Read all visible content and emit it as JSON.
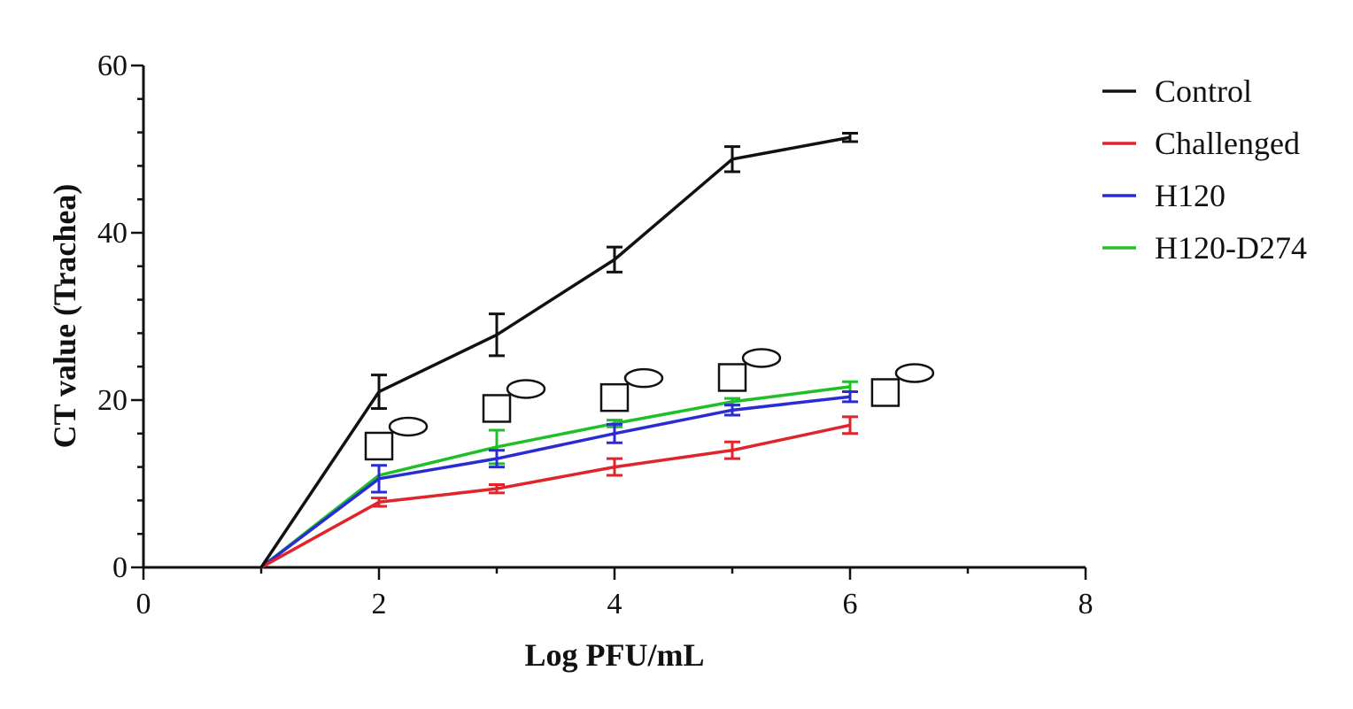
{
  "chart_data": {
    "type": "line",
    "xlabel": "Log PFU/mL",
    "ylabel": "CT value (Trachea)",
    "xlim": [
      0,
      8
    ],
    "ylim": [
      0,
      60
    ],
    "x_ticks": [
      "0",
      "2",
      "4",
      "6",
      "8"
    ],
    "y_ticks": [
      "0",
      "20",
      "40",
      "60"
    ],
    "grid": false,
    "legend_position": "top-right",
    "series": [
      {
        "name": "Control",
        "color": "#111111",
        "x": [
          1,
          2,
          3,
          4,
          5,
          6
        ],
        "y": [
          0,
          21,
          27.8,
          36.8,
          48.8,
          51.4
        ],
        "err": [
          null,
          2,
          2.5,
          1.5,
          1.5,
          0.5
        ]
      },
      {
        "name": "Challenged",
        "color": "#e0252a",
        "x": [
          1,
          2,
          3,
          4,
          5,
          6
        ],
        "y": [
          0,
          7.8,
          9.4,
          12,
          14,
          17
        ],
        "err": [
          null,
          0.5,
          0.5,
          1,
          1,
          1
        ]
      },
      {
        "name": "H120",
        "color": "#2b2bd6",
        "x": [
          1,
          2,
          3,
          4,
          5,
          6
        ],
        "y": [
          0,
          10.6,
          13,
          16,
          18.8,
          20.4
        ],
        "err": [
          null,
          1.6,
          1,
          1.1,
          0.6,
          0.6
        ]
      },
      {
        "name": "H120-D274",
        "color": "#1fbf2a",
        "x": [
          1,
          2,
          3,
          4,
          5,
          6
        ],
        "y": [
          0,
          11,
          14.4,
          17.2,
          19.8,
          21.6
        ],
        "err": [
          null,
          0,
          2,
          0.4,
          0.4,
          0.6
        ]
      }
    ],
    "annotations": [
      {
        "x": 2,
        "y": 14.5,
        "shape": "square-ellipse"
      },
      {
        "x": 3,
        "y": 19,
        "shape": "square-ellipse"
      },
      {
        "x": 4,
        "y": 20.3,
        "shape": "square-ellipse"
      },
      {
        "x": 5,
        "y": 22.7,
        "shape": "square-ellipse"
      },
      {
        "x": 6.3,
        "y": 20.9,
        "shape": "square-ellipse"
      }
    ]
  }
}
